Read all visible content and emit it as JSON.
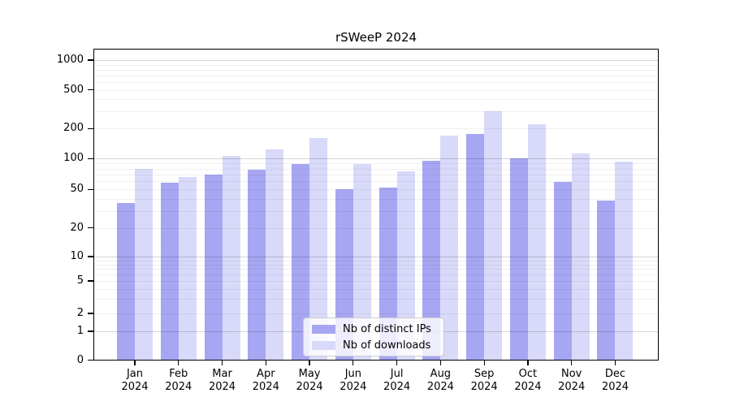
{
  "title": "rSWeeP 2024",
  "chart_data": {
    "type": "bar",
    "title": "rSWeeP 2024",
    "categories": [
      "Jan",
      "Feb",
      "Mar",
      "Apr",
      "May",
      "Jun",
      "Jul",
      "Aug",
      "Sep",
      "Oct",
      "Nov",
      "Dec"
    ],
    "x_year_label": "2024",
    "series": [
      {
        "name": "Nb of distinct IPs",
        "color": "#a6a6f2",
        "values": [
          36,
          58,
          70,
          78,
          89,
          50,
          52,
          95,
          175,
          100,
          59,
          38
        ]
      },
      {
        "name": "Nb of downloads",
        "color": "#d9d9fa",
        "values": [
          79,
          66,
          107,
          124,
          162,
          89,
          75,
          170,
          300,
          222,
          112,
          93
        ]
      }
    ],
    "yticks": [
      0,
      1,
      2,
      5,
      10,
      20,
      50,
      100,
      200,
      500,
      1000
    ],
    "ylim": [
      0,
      1200
    ],
    "yscale": "log-like with 0 baseline",
    "grid": "horizontal major+minor",
    "legend_position": "inside-bottom-center",
    "xlabel": "",
    "ylabel": ""
  },
  "legend": {
    "items": [
      {
        "label": "Nb of distinct IPs",
        "color": "#a6a6f2"
      },
      {
        "label": "Nb of downloads",
        "color": "#d9d9fa"
      }
    ]
  },
  "colors": {
    "background": "#ffffff",
    "frame": "#000000",
    "grid_major": "#cfcfcf",
    "grid_minor": "#ececec"
  }
}
